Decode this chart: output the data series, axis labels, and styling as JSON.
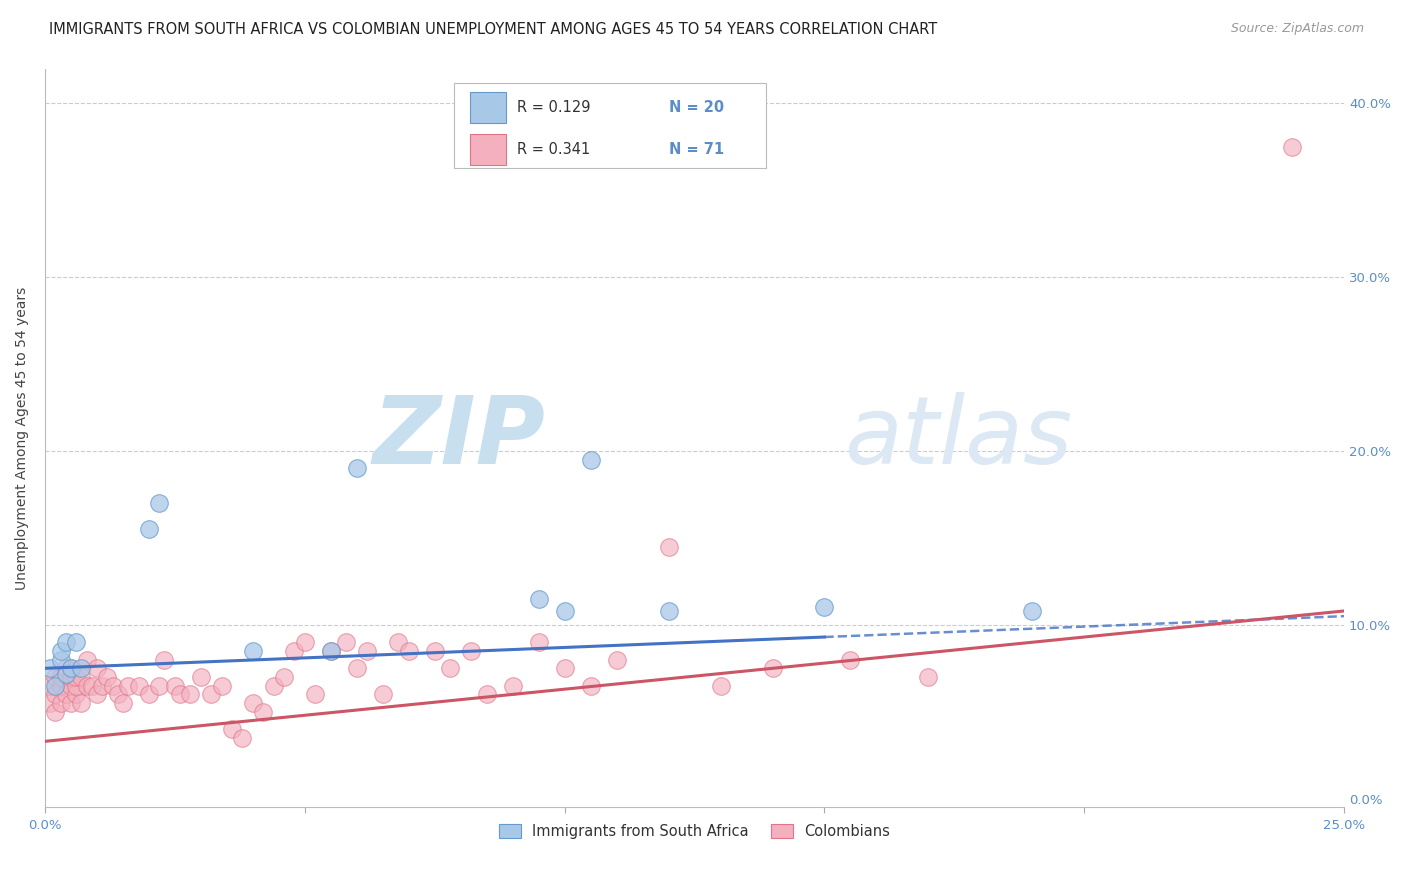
{
  "title": "IMMIGRANTS FROM SOUTH AFRICA VS COLOMBIAN UNEMPLOYMENT AMONG AGES 45 TO 54 YEARS CORRELATION CHART",
  "source": "Source: ZipAtlas.com",
  "ylabel": "Unemployment Among Ages 45 to 54 years",
  "xlim": [
    0.0,
    0.25
  ],
  "ylim": [
    -0.005,
    0.42
  ],
  "xticks": [
    0.0,
    0.05,
    0.1,
    0.15,
    0.2,
    0.25
  ],
  "yticks": [
    0.0,
    0.1,
    0.2,
    0.3,
    0.4
  ],
  "grid_color": "#cccccc",
  "background_color": "#ffffff",
  "blue_R": "0.129",
  "blue_N": "20",
  "pink_R": "0.341",
  "pink_N": "71",
  "blue_color": "#a8c8e8",
  "pink_color": "#f4b0bf",
  "blue_edge_color": "#6699cc",
  "pink_edge_color": "#dd7788",
  "blue_line_color": "#4472c4",
  "pink_line_color": "#cc5566",
  "blue_scatter_x": [
    0.001,
    0.002,
    0.003,
    0.003,
    0.004,
    0.004,
    0.005,
    0.006,
    0.007,
    0.02,
    0.022,
    0.04,
    0.055,
    0.06,
    0.095,
    0.1,
    0.105,
    0.12,
    0.15,
    0.19
  ],
  "blue_scatter_y": [
    0.075,
    0.065,
    0.08,
    0.085,
    0.072,
    0.09,
    0.075,
    0.09,
    0.075,
    0.155,
    0.17,
    0.085,
    0.085,
    0.19,
    0.115,
    0.108,
    0.195,
    0.108,
    0.11,
    0.108
  ],
  "pink_scatter_x": [
    0.001,
    0.001,
    0.002,
    0.002,
    0.002,
    0.003,
    0.003,
    0.003,
    0.004,
    0.004,
    0.005,
    0.005,
    0.005,
    0.005,
    0.006,
    0.006,
    0.006,
    0.007,
    0.007,
    0.008,
    0.008,
    0.009,
    0.01,
    0.01,
    0.011,
    0.012,
    0.013,
    0.014,
    0.015,
    0.016,
    0.018,
    0.02,
    0.022,
    0.023,
    0.025,
    0.026,
    0.028,
    0.03,
    0.032,
    0.034,
    0.036,
    0.038,
    0.04,
    0.042,
    0.044,
    0.046,
    0.048,
    0.05,
    0.052,
    0.055,
    0.058,
    0.06,
    0.062,
    0.065,
    0.068,
    0.07,
    0.075,
    0.078,
    0.082,
    0.085,
    0.09,
    0.095,
    0.1,
    0.105,
    0.11,
    0.12,
    0.13,
    0.14,
    0.155,
    0.17,
    0.24
  ],
  "pink_scatter_y": [
    0.055,
    0.065,
    0.05,
    0.06,
    0.07,
    0.055,
    0.065,
    0.07,
    0.06,
    0.075,
    0.055,
    0.065,
    0.07,
    0.075,
    0.06,
    0.065,
    0.07,
    0.055,
    0.07,
    0.065,
    0.08,
    0.065,
    0.06,
    0.075,
    0.065,
    0.07,
    0.065,
    0.06,
    0.055,
    0.065,
    0.065,
    0.06,
    0.065,
    0.08,
    0.065,
    0.06,
    0.06,
    0.07,
    0.06,
    0.065,
    0.04,
    0.035,
    0.055,
    0.05,
    0.065,
    0.07,
    0.085,
    0.09,
    0.06,
    0.085,
    0.09,
    0.075,
    0.085,
    0.06,
    0.09,
    0.085,
    0.085,
    0.075,
    0.085,
    0.06,
    0.065,
    0.09,
    0.075,
    0.065,
    0.08,
    0.145,
    0.065,
    0.075,
    0.08,
    0.07,
    0.375
  ],
  "blue_trend": [
    0.0,
    0.25,
    0.075,
    0.105
  ],
  "pink_trend": [
    0.0,
    0.25,
    0.033,
    0.108
  ],
  "blue_dash": [
    0.15,
    0.25,
    0.103,
    0.127
  ],
  "legend_blue_label": "Immigrants from South Africa",
  "legend_pink_label": "Colombians",
  "title_fontsize": 10.5,
  "axis_label_fontsize": 10,
  "tick_fontsize": 9.5,
  "source_fontsize": 9,
  "watermark_zip_color": "#c8dff0",
  "watermark_atlas_color": "#dde8f5"
}
